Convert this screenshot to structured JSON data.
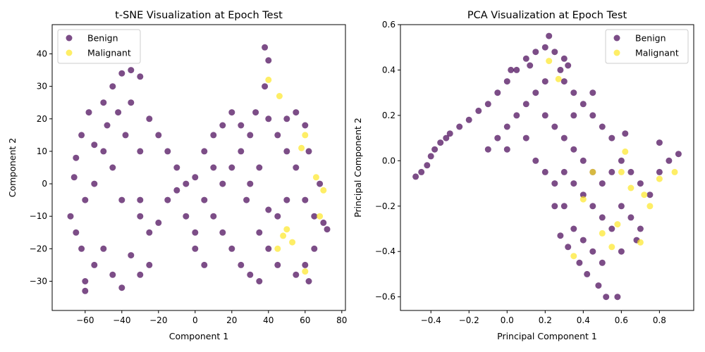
{
  "colors": {
    "benign": "#440154",
    "malignant": "#fde725",
    "axis": "#000000",
    "legend_border": "#cccccc"
  },
  "chart_data": [
    {
      "type": "scatter",
      "title": "t-SNE Visualization at Epoch Test",
      "xlabel": "Component 1",
      "ylabel": "Component 2",
      "xlim": [
        -78,
        82
      ],
      "ylim": [
        -39,
        49
      ],
      "xticks": [
        -60,
        -40,
        -20,
        0,
        20,
        40,
        60,
        80
      ],
      "yticks": [
        -30,
        -20,
        -10,
        0,
        10,
        20,
        30,
        40
      ],
      "grid": false,
      "legend": {
        "placement": "upper-left",
        "entries": [
          "Benign",
          "Malignant"
        ]
      },
      "series": [
        {
          "name": "Benign",
          "color": "#440154",
          "points": [
            [
              -60,
              -30
            ],
            [
              -55,
              -25
            ],
            [
              -65,
              -15
            ],
            [
              -50,
              -20
            ],
            [
              -45,
              -28
            ],
            [
              -40,
              -32
            ],
            [
              -35,
              -22
            ],
            [
              -60,
              -5
            ],
            [
              -55,
              0
            ],
            [
              -65,
              8
            ],
            [
              -62,
              15
            ],
            [
              -58,
              22
            ],
            [
              -50,
              25
            ],
            [
              -45,
              30
            ],
            [
              -40,
              34
            ],
            [
              -35,
              35
            ],
            [
              -30,
              33
            ],
            [
              -50,
              10
            ],
            [
              -45,
              5
            ],
            [
              -40,
              -5
            ],
            [
              -38,
              15
            ],
            [
              -30,
              10
            ],
            [
              -25,
              20
            ],
            [
              -20,
              15
            ],
            [
              -15,
              10
            ],
            [
              -10,
              5
            ],
            [
              -5,
              0
            ],
            [
              -30,
              -10
            ],
            [
              -25,
              -15
            ],
            [
              -20,
              -12
            ],
            [
              -15,
              -5
            ],
            [
              -25,
              -25
            ],
            [
              -30,
              -28
            ],
            [
              -10,
              -2
            ],
            [
              0,
              2
            ],
            [
              5,
              10
            ],
            [
              10,
              15
            ],
            [
              15,
              18
            ],
            [
              20,
              22
            ],
            [
              10,
              -10
            ],
            [
              15,
              -15
            ],
            [
              20,
              -20
            ],
            [
              25,
              -25
            ],
            [
              30,
              -28
            ],
            [
              5,
              -5
            ],
            [
              25,
              10
            ],
            [
              30,
              15
            ],
            [
              35,
              5
            ],
            [
              28,
              -5
            ],
            [
              35,
              -15
            ],
            [
              40,
              -20
            ],
            [
              45,
              -10
            ],
            [
              50,
              -5
            ],
            [
              38,
              42
            ],
            [
              40,
              38
            ],
            [
              38,
              30
            ],
            [
              40,
              20
            ],
            [
              45,
              15
            ],
            [
              50,
              20
            ],
            [
              55,
              22
            ],
            [
              60,
              18
            ],
            [
              62,
              10
            ],
            [
              55,
              5
            ],
            [
              60,
              -5
            ],
            [
              65,
              -10
            ],
            [
              70,
              -12
            ],
            [
              65,
              -20
            ],
            [
              60,
              -25
            ],
            [
              55,
              -28
            ],
            [
              45,
              -25
            ],
            [
              40,
              -8
            ],
            [
              33,
              22
            ],
            [
              25,
              18
            ],
            [
              20,
              5
            ],
            [
              15,
              0
            ],
            [
              0,
              -20
            ],
            [
              5,
              -25
            ],
            [
              -60,
              -33
            ],
            [
              -62,
              -20
            ],
            [
              -68,
              -10
            ],
            [
              -66,
              2
            ],
            [
              -55,
              12
            ],
            [
              -48,
              18
            ],
            [
              -42,
              22
            ],
            [
              -35,
              25
            ],
            [
              -30,
              -5
            ],
            [
              -5,
              -10
            ],
            [
              0,
              -15
            ],
            [
              10,
              5
            ],
            [
              30,
              0
            ],
            [
              50,
              10
            ],
            [
              68,
              0
            ],
            [
              72,
              -14
            ],
            [
              62,
              -30
            ],
            [
              35,
              -30
            ]
          ]
        },
        {
          "name": "Malignant",
          "color": "#fde725",
          "points": [
            [
              46,
              27
            ],
            [
              50,
              -14
            ],
            [
              60,
              15
            ],
            [
              66,
              2
            ],
            [
              58,
              11
            ],
            [
              45,
              -20
            ],
            [
              68,
              -10
            ],
            [
              40,
              32
            ],
            [
              53,
              -18
            ],
            [
              70,
              -2
            ],
            [
              48,
              -16
            ],
            [
              60,
              -27
            ]
          ]
        }
      ]
    },
    {
      "type": "scatter",
      "title": "PCA Visualization at Epoch Test",
      "xlabel": "Principal Component 1",
      "ylabel": "Principal Component 2",
      "xlim": [
        -0.56,
        0.98
      ],
      "ylim": [
        -0.66,
        0.6
      ],
      "xticks": [
        -0.4,
        -0.2,
        0.0,
        0.2,
        0.4,
        0.6,
        0.8
      ],
      "yticks": [
        -0.6,
        -0.4,
        -0.2,
        0.0,
        0.2,
        0.4,
        0.6
      ],
      "grid": false,
      "legend": {
        "placement": "upper-right",
        "entries": [
          "Benign",
          "Malignant"
        ]
      },
      "series": [
        {
          "name": "Benign",
          "color": "#440154",
          "points": [
            [
              -0.48,
              -0.07
            ],
            [
              -0.45,
              -0.05
            ],
            [
              -0.42,
              -0.02
            ],
            [
              -0.4,
              0.02
            ],
            [
              -0.38,
              0.05
            ],
            [
              -0.35,
              0.08
            ],
            [
              -0.32,
              0.1
            ],
            [
              -0.3,
              0.12
            ],
            [
              -0.25,
              0.15
            ],
            [
              -0.2,
              0.18
            ],
            [
              -0.15,
              0.22
            ],
            [
              -0.1,
              0.25
            ],
            [
              -0.05,
              0.3
            ],
            [
              0.0,
              0.35
            ],
            [
              0.05,
              0.4
            ],
            [
              0.1,
              0.45
            ],
            [
              0.15,
              0.48
            ],
            [
              0.2,
              0.5
            ],
            [
              0.25,
              0.48
            ],
            [
              0.3,
              0.45
            ],
            [
              0.28,
              0.4
            ],
            [
              0.2,
              0.35
            ],
            [
              0.15,
              0.3
            ],
            [
              0.1,
              0.25
            ],
            [
              0.05,
              0.2
            ],
            [
              0.0,
              0.15
            ],
            [
              -0.05,
              0.1
            ],
            [
              0.2,
              0.2
            ],
            [
              0.25,
              0.15
            ],
            [
              0.3,
              0.1
            ],
            [
              0.35,
              0.05
            ],
            [
              0.4,
              0.0
            ],
            [
              0.45,
              -0.05
            ],
            [
              0.3,
              -0.05
            ],
            [
              0.35,
              -0.1
            ],
            [
              0.4,
              -0.15
            ],
            [
              0.45,
              -0.2
            ],
            [
              0.5,
              -0.25
            ],
            [
              0.55,
              -0.3
            ],
            [
              0.35,
              -0.3
            ],
            [
              0.4,
              -0.35
            ],
            [
              0.45,
              -0.4
            ],
            [
              0.5,
              -0.45
            ],
            [
              0.3,
              -0.2
            ],
            [
              0.25,
              -0.1
            ],
            [
              0.5,
              -0.1
            ],
            [
              0.55,
              -0.05
            ],
            [
              0.6,
              0.0
            ],
            [
              0.65,
              -0.05
            ],
            [
              0.7,
              -0.1
            ],
            [
              0.75,
              -0.15
            ],
            [
              0.8,
              -0.05
            ],
            [
              0.85,
              0.0
            ],
            [
              0.6,
              -0.2
            ],
            [
              0.65,
              -0.25
            ],
            [
              0.7,
              -0.3
            ],
            [
              0.55,
              0.1
            ],
            [
              0.5,
              0.15
            ],
            [
              0.45,
              0.2
            ],
            [
              0.4,
              0.25
            ],
            [
              0.35,
              0.3
            ],
            [
              0.3,
              0.35
            ],
            [
              0.42,
              -0.5
            ],
            [
              0.48,
              -0.55
            ],
            [
              0.52,
              -0.6
            ],
            [
              0.58,
              -0.6
            ],
            [
              0.38,
              -0.45
            ],
            [
              0.32,
              -0.38
            ],
            [
              0.28,
              -0.33
            ],
            [
              0.9,
              0.03
            ],
            [
              0.8,
              0.08
            ],
            [
              0.62,
              0.12
            ],
            [
              -0.1,
              0.05
            ],
            [
              0.0,
              0.05
            ],
            [
              0.1,
              0.1
            ],
            [
              0.15,
              0.0
            ],
            [
              0.2,
              -0.05
            ],
            [
              0.25,
              -0.2
            ],
            [
              0.6,
              -0.4
            ],
            [
              0.68,
              -0.35
            ],
            [
              0.45,
              0.3
            ],
            [
              0.35,
              0.2
            ],
            [
              0.32,
              0.42
            ],
            [
              0.22,
              0.55
            ],
            [
              0.12,
              0.42
            ],
            [
              0.02,
              0.4
            ]
          ]
        },
        {
          "name": "Malignant",
          "color": "#fde725",
          "points": [
            [
              0.27,
              0.36
            ],
            [
              0.22,
              0.44
            ],
            [
              0.88,
              -0.05
            ],
            [
              0.4,
              -0.17
            ],
            [
              0.58,
              -0.28
            ],
            [
              0.5,
              -0.32
            ],
            [
              0.7,
              -0.36
            ],
            [
              0.62,
              0.04
            ],
            [
              0.65,
              -0.12
            ],
            [
              0.75,
              -0.2
            ],
            [
              0.45,
              -0.05
            ],
            [
              0.55,
              -0.38
            ],
            [
              0.8,
              -0.08
            ],
            [
              0.35,
              -0.42
            ],
            [
              0.72,
              -0.15
            ],
            [
              0.6,
              -0.05
            ]
          ]
        }
      ]
    }
  ]
}
